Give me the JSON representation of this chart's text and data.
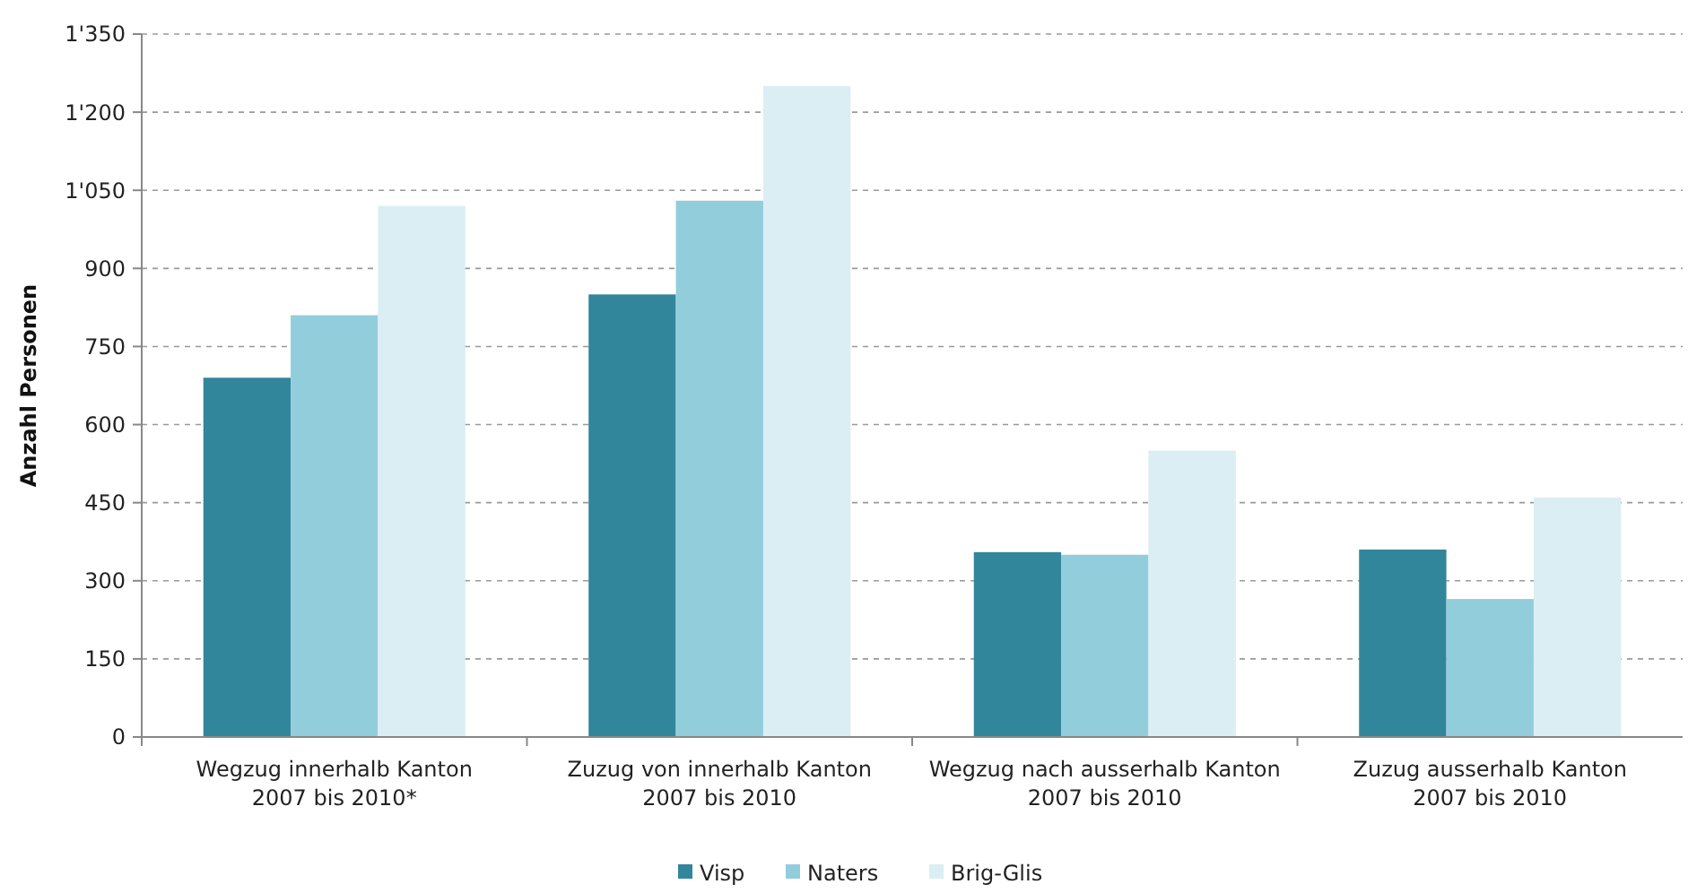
{
  "chart_data": {
    "type": "bar",
    "ylabel": "Anzahl Personen",
    "categories": [
      "Wegzug innerhalb Kanton\n2007 bis 2010*",
      "Zuzug von innerhalb Kanton\n2007 bis 2010",
      "Wegzug nach ausserhalb Kanton\n2007 bis 2010",
      "Zuzug ausserhalb Kanton\n2007 bis 2010"
    ],
    "series": [
      {
        "name": "Visp",
        "color": "#31869b",
        "values": [
          690,
          850,
          355,
          360
        ]
      },
      {
        "name": "Naters",
        "color": "#92cddc",
        "values": [
          810,
          1030,
          350,
          265
        ]
      },
      {
        "name": "Brig-Glis",
        "color": "#daeef3",
        "values": [
          1020,
          1250,
          550,
          460
        ]
      }
    ],
    "ylim": [
      0,
      1350
    ],
    "yticks": [
      0,
      150,
      300,
      450,
      600,
      750,
      900,
      {
        "value": 1050,
        "label": "1'050"
      },
      {
        "value": 1200,
        "label": "1'200"
      },
      {
        "value": 1350,
        "label": "1'350"
      }
    ],
    "grid": "y",
    "legend": "bottom"
  }
}
